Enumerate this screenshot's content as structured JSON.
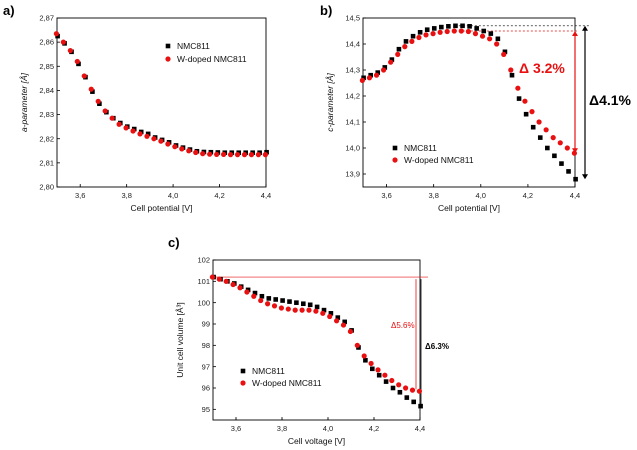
{
  "colors": {
    "nmc811": "#000000",
    "wdoped": "#e81010",
    "annotation_red": "#e81010"
  },
  "chart_data": [
    {
      "panel_label": "a)",
      "type": "scatter",
      "xlabel": "Cell potential [V]",
      "ylabel": "a-parameter [Å]",
      "xlim": [
        3.5,
        4.4
      ],
      "ylim": [
        2.8,
        2.87
      ],
      "x_ticks": [
        "3,6",
        "3,8",
        "4,0",
        "4,2",
        "4,4"
      ],
      "y_ticks": [
        "2,80",
        "2,81",
        "2,82",
        "2,83",
        "2,84",
        "2,85",
        "2,86",
        "2,87"
      ],
      "legend_position": "top-right",
      "series": [
        {
          "name": "NMC811",
          "marker": "square",
          "color": "#000000",
          "x": [
            3.5,
            3.53,
            3.56,
            3.59,
            3.62,
            3.65,
            3.68,
            3.71,
            3.74,
            3.77,
            3.8,
            3.83,
            3.86,
            3.89,
            3.92,
            3.95,
            3.98,
            4.01,
            4.04,
            4.07,
            4.1,
            4.13,
            4.16,
            4.19,
            4.22,
            4.25,
            4.28,
            4.31,
            4.34,
            4.37,
            4.4
          ],
          "y": [
            2.8625,
            2.8595,
            2.856,
            2.851,
            2.8455,
            2.8395,
            2.8345,
            2.831,
            2.8285,
            2.8265,
            2.825,
            2.824,
            2.8228,
            2.822,
            2.8205,
            2.8195,
            2.8185,
            2.8172,
            2.8163,
            2.8155,
            2.8148,
            2.8145,
            2.8144,
            2.8143,
            2.8142,
            2.8142,
            2.8142,
            2.8142,
            2.8142,
            2.8142,
            2.8144
          ]
        },
        {
          "name": "W-doped NMC811",
          "marker": "circle",
          "color": "#e81010",
          "x": [
            3.5,
            3.53,
            3.56,
            3.59,
            3.62,
            3.65,
            3.68,
            3.71,
            3.74,
            3.77,
            3.8,
            3.83,
            3.86,
            3.89,
            3.92,
            3.95,
            3.98,
            4.01,
            4.04,
            4.07,
            4.1,
            4.13,
            4.16,
            4.19,
            4.22,
            4.25,
            4.28,
            4.31,
            4.34,
            4.37,
            4.4
          ],
          "y": [
            2.8635,
            2.86,
            2.8565,
            2.852,
            2.846,
            2.8405,
            2.8355,
            2.8315,
            2.8285,
            2.826,
            2.8245,
            2.8232,
            2.822,
            2.821,
            2.82,
            2.819,
            2.8178,
            2.8167,
            2.8158,
            2.815,
            2.8143,
            2.8138,
            2.8136,
            2.8135,
            2.8135,
            2.8134,
            2.8134,
            2.8134,
            2.8134,
            2.8134,
            2.8134
          ]
        }
      ]
    },
    {
      "panel_label": "b)",
      "type": "scatter",
      "xlabel": "Cell potential [V]",
      "ylabel": "c-parameter [Å]",
      "xlim": [
        3.5,
        4.4
      ],
      "ylim": [
        13.85,
        14.5
      ],
      "x_ticks": [
        "3,6",
        "3,8",
        "4,0",
        "4,2",
        "4,4"
      ],
      "y_ticks": [
        "13,9",
        "14,0",
        "14,1",
        "14,2",
        "14,3",
        "14,4",
        "14,5"
      ],
      "legend_position": "bottom-left",
      "annotations": [
        {
          "text": "Δ 3.2%",
          "color": "#e81010"
        },
        {
          "text": "Δ4.1%",
          "color": "#000000"
        }
      ],
      "series": [
        {
          "name": "NMC811",
          "marker": "square",
          "color": "#000000",
          "x": [
            3.5,
            3.53,
            3.56,
            3.59,
            3.62,
            3.65,
            3.68,
            3.71,
            3.74,
            3.77,
            3.8,
            3.83,
            3.86,
            3.89,
            3.92,
            3.95,
            3.98,
            4.01,
            4.04,
            4.07,
            4.1,
            4.13,
            4.16,
            4.19,
            4.22,
            4.25,
            4.28,
            4.31,
            4.34,
            4.37,
            4.4
          ],
          "y": [
            14.27,
            14.28,
            14.29,
            14.31,
            14.34,
            14.38,
            14.41,
            14.43,
            14.445,
            14.455,
            14.46,
            14.465,
            14.468,
            14.47,
            14.47,
            14.468,
            14.46,
            14.45,
            14.44,
            14.42,
            14.37,
            14.28,
            14.19,
            14.13,
            14.08,
            14.04,
            14.0,
            13.97,
            13.94,
            13.91,
            13.88
          ]
        },
        {
          "name": "W-doped NMC811",
          "marker": "circle",
          "color": "#e81010",
          "x": [
            3.5,
            3.53,
            3.56,
            3.59,
            3.62,
            3.65,
            3.68,
            3.71,
            3.74,
            3.77,
            3.8,
            3.83,
            3.86,
            3.89,
            3.92,
            3.95,
            3.98,
            4.01,
            4.04,
            4.07,
            4.1,
            4.13,
            4.16,
            4.19,
            4.22,
            4.25,
            4.28,
            4.31,
            4.34,
            4.37,
            4.4
          ],
          "y": [
            14.26,
            14.27,
            14.28,
            14.3,
            14.33,
            14.36,
            14.39,
            14.41,
            14.425,
            14.435,
            14.44,
            14.445,
            14.448,
            14.45,
            14.45,
            14.448,
            14.44,
            14.43,
            14.42,
            14.4,
            14.36,
            14.3,
            14.23,
            14.18,
            14.14,
            14.1,
            14.07,
            14.04,
            14.02,
            14.0,
            13.98
          ]
        }
      ]
    },
    {
      "panel_label": "c)",
      "type": "scatter",
      "xlabel": "Cell voltage [V]",
      "ylabel": "Unit cell volume [Å³]",
      "xlim": [
        3.5,
        4.4
      ],
      "ylim": [
        94.5,
        102
      ],
      "x_ticks": [
        "3,6",
        "3,8",
        "4,0",
        "4,2",
        "4,4"
      ],
      "y_ticks": [
        "95",
        "96",
        "97",
        "98",
        "99",
        "100",
        "101",
        "102"
      ],
      "legend_position": "bottom-left",
      "annotations": [
        {
          "text": "Δ5.6%",
          "color": "#e81010"
        },
        {
          "text": "Δ6.3%",
          "color": "#000000"
        }
      ],
      "series": [
        {
          "name": "NMC811",
          "marker": "square",
          "color": "#000000",
          "x": [
            3.5,
            3.53,
            3.56,
            3.59,
            3.62,
            3.65,
            3.68,
            3.71,
            3.74,
            3.77,
            3.8,
            3.83,
            3.86,
            3.89,
            3.92,
            3.95,
            3.98,
            4.01,
            4.04,
            4.07,
            4.1,
            4.13,
            4.16,
            4.19,
            4.22,
            4.25,
            4.28,
            4.31,
            4.34,
            4.37,
            4.4
          ],
          "y": [
            101.2,
            101.1,
            101.0,
            100.9,
            100.75,
            100.6,
            100.45,
            100.3,
            100.2,
            100.15,
            100.1,
            100.05,
            100.0,
            99.95,
            99.9,
            99.8,
            99.65,
            99.5,
            99.3,
            99.1,
            98.7,
            97.9,
            97.3,
            96.9,
            96.6,
            96.3,
            96.0,
            95.8,
            95.55,
            95.35,
            95.15
          ]
        },
        {
          "name": "W-doped NMC811",
          "marker": "circle",
          "color": "#e81010",
          "x": [
            3.5,
            3.53,
            3.56,
            3.59,
            3.62,
            3.65,
            3.68,
            3.71,
            3.74,
            3.77,
            3.8,
            3.83,
            3.86,
            3.89,
            3.92,
            3.95,
            3.98,
            4.01,
            4.04,
            4.07,
            4.1,
            4.13,
            4.16,
            4.19,
            4.22,
            4.25,
            4.28,
            4.31,
            4.34,
            4.37,
            4.4
          ],
          "y": [
            101.2,
            101.1,
            101.0,
            100.85,
            100.7,
            100.5,
            100.3,
            100.1,
            99.95,
            99.85,
            99.75,
            99.7,
            99.65,
            99.65,
            99.65,
            99.6,
            99.5,
            99.35,
            99.15,
            98.95,
            98.65,
            98.0,
            97.5,
            97.15,
            96.85,
            96.6,
            96.35,
            96.15,
            96.0,
            95.9,
            95.85
          ]
        }
      ]
    }
  ]
}
